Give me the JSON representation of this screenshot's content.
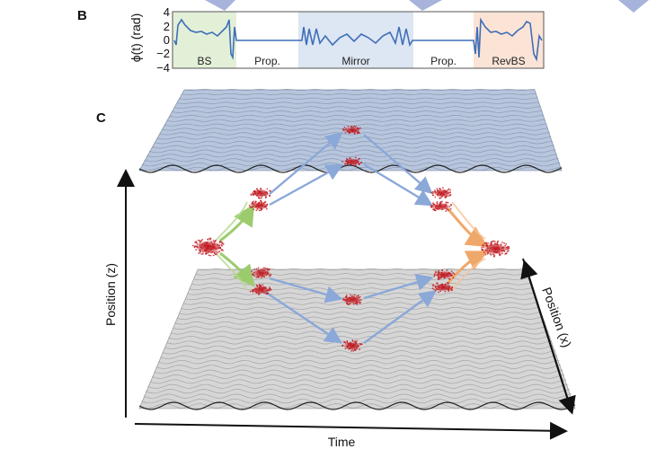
{
  "panel_b": {
    "label": "B",
    "ylabel": "ϕ(t) (rad)",
    "yticks": [
      "4",
      "2",
      "0",
      "−2",
      "−4"
    ],
    "segments": [
      {
        "label": "BS",
        "color": "#e3f0d8"
      },
      {
        "label": "Prop.",
        "color": "#ffffff"
      },
      {
        "label": "Mirror",
        "color": "#dde6f3"
      },
      {
        "label": "Prop.",
        "color": "#ffffff"
      },
      {
        "label": "RevBS",
        "color": "#fbe4d6"
      }
    ],
    "trace_color": "#3f6fb8"
  },
  "panel_c": {
    "label": "C",
    "axis_z": "Position (z)",
    "axis_time": "Time",
    "axis_x": "Position (x)",
    "colors": {
      "lattice_upper": "#b8c6dd",
      "lattice_lower": "#d6d6d6",
      "atom_cloud": "#c0191f",
      "arrow_green": "#9ccb6e",
      "arrow_blue": "#8aa8d8",
      "arrow_orange": "#f0a86a"
    }
  }
}
